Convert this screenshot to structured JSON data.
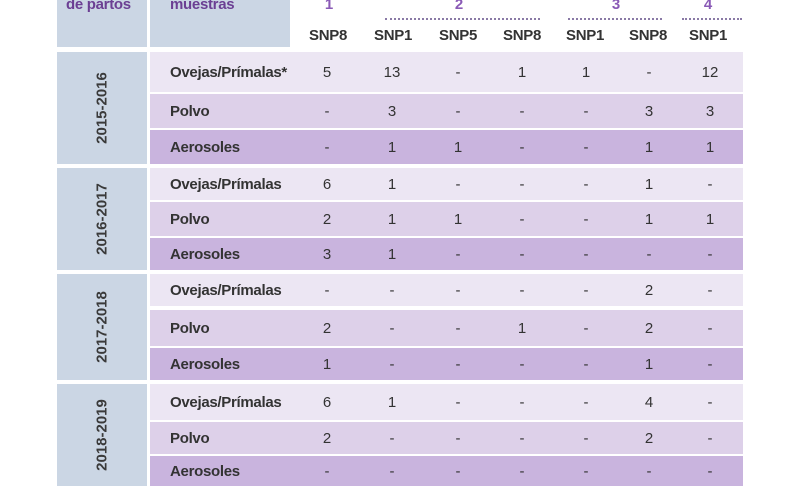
{
  "header": {
    "col1_label": "de partos",
    "col2_label": "muestras",
    "groups": [
      "1",
      "2",
      "3",
      "4"
    ],
    "snp_columns": [
      "SNP8",
      "SNP1",
      "SNP5",
      "SNP8",
      "SNP1",
      "SNP8",
      "SNP1"
    ]
  },
  "year_blocks": [
    {
      "year": "2015-2016",
      "rows": [
        {
          "label": "Ovejas/Prímalas*",
          "values": [
            "5",
            "13",
            "-",
            "1",
            "1",
            "-",
            "12"
          ]
        },
        {
          "label": "Polvo",
          "values": [
            "-",
            "3",
            "-",
            "-",
            "-",
            "3",
            "3"
          ]
        },
        {
          "label": "Aerosoles",
          "values": [
            "-",
            "1",
            "1",
            "-",
            "-",
            "1",
            "1"
          ]
        }
      ]
    },
    {
      "year": "2016-2017",
      "rows": [
        {
          "label": "Ovejas/Prímalas",
          "values": [
            "6",
            "1",
            "-",
            "-",
            "-",
            "1",
            "-"
          ]
        },
        {
          "label": "Polvo",
          "values": [
            "2",
            "1",
            "1",
            "-",
            "-",
            "1",
            "1"
          ]
        },
        {
          "label": "Aerosoles",
          "values": [
            "3",
            "1",
            "-",
            "-",
            "-",
            "-",
            "-"
          ]
        }
      ]
    },
    {
      "year": "2017-2018",
      "rows": [
        {
          "label": "Ovejas/Prímalas",
          "values": [
            "-",
            "-",
            "-",
            "-",
            "-",
            "2",
            "-"
          ]
        },
        {
          "label": "Polvo",
          "values": [
            "2",
            "-",
            "-",
            "1",
            "-",
            "2",
            "-"
          ]
        },
        {
          "label": "Aerosoles",
          "values": [
            "1",
            "-",
            "-",
            "-",
            "-",
            "1",
            "-"
          ]
        }
      ]
    },
    {
      "year": "2018-2019",
      "rows": [
        {
          "label": "Ovejas/Prímalas",
          "values": [
            "6",
            "1",
            "-",
            "-",
            "-",
            "4",
            "-"
          ]
        },
        {
          "label": "Polvo",
          "values": [
            "2",
            "-",
            "-",
            "-",
            "-",
            "2",
            "-"
          ]
        },
        {
          "label": "Aerosoles",
          "values": [
            "-",
            "-",
            "-",
            "-",
            "-",
            "-",
            "-"
          ]
        }
      ]
    }
  ]
}
